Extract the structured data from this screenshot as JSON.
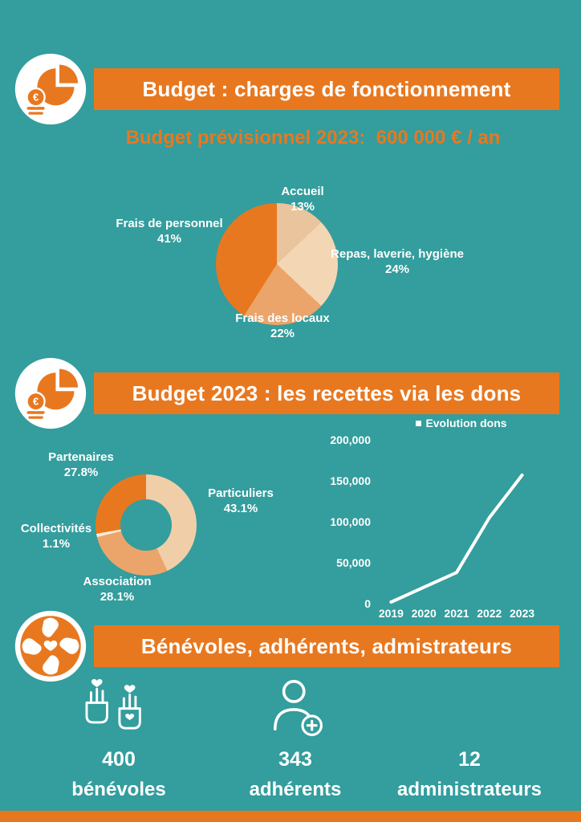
{
  "page": {
    "background_color": "#349d9d",
    "accent_color": "#e8781f",
    "text_color": "#ffffff"
  },
  "icons": {
    "charges_header": "budget-pie-euro-icon",
    "recettes_header": "budget-pie-euro-icon",
    "people_header": "community-hands-icon",
    "benevoles": "hands-hearts-icon",
    "adherents": "member-add-icon"
  },
  "header_charges": {
    "title": "Budget : charges de fonctionnement",
    "subtitle": "Budget prévisionnel 2023:  600 000 € / an"
  },
  "header_recettes": {
    "title": "Budget 2023 : les recettes via les dons"
  },
  "header_people": {
    "title": "Bénévoles, adhérents, admistrateurs"
  },
  "people_stats": [
    {
      "value": "400",
      "label": "bénévoles"
    },
    {
      "value": "343",
      "label": "adhérents"
    },
    {
      "value": "12",
      "label": "administrateurs"
    }
  ],
  "chart_data": [
    {
      "type": "pie",
      "categories": [
        "Accueil",
        "Repas, laverie, hygiène",
        "Frais des locaux",
        "Frais de personnel"
      ],
      "values": [
        13,
        24,
        22,
        41
      ],
      "value_labels": [
        "13%",
        "24%",
        "22%",
        "41%"
      ],
      "colors": [
        "#e9c49c",
        "#f3d7b4",
        "#eba56a",
        "#e8781f"
      ],
      "start_angle_deg": 0,
      "direction": "clockwise-from-top",
      "legend_position": "none"
    },
    {
      "type": "donut",
      "categories": [
        "Particuliers",
        "Association",
        "Collectivités",
        "Partenaires"
      ],
      "values": [
        43.1,
        28.1,
        1.1,
        27.8
      ],
      "value_labels": [
        "43.1%",
        "28.1%",
        "1.1%",
        "27.8%"
      ],
      "colors": [
        "#f0cfa8",
        "#eba56a",
        "#f8ead8",
        "#e8781f"
      ],
      "start_angle_deg": 0,
      "direction": "clockwise-from-top",
      "legend_position": "none"
    },
    {
      "type": "line",
      "legend": "Evolution dons",
      "x": [
        "2019",
        "2020",
        "2021",
        "2022",
        "2023"
      ],
      "values": [
        2000,
        20000,
        38000,
        105000,
        157000
      ],
      "ylim": [
        0,
        200000
      ],
      "yticks": [
        0,
        50000,
        100000,
        150000,
        200000
      ],
      "ytick_labels": [
        "0",
        "50,000",
        "100,000",
        "150,000",
        "200,000"
      ],
      "line_color": "#ffffff",
      "grid": false,
      "legend_position": "top"
    }
  ]
}
